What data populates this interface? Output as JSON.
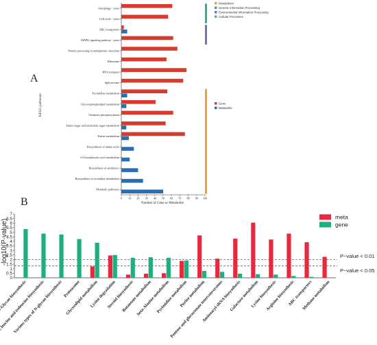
{
  "panel_labels": {
    "a": "A",
    "b": "B"
  },
  "chart_data": [
    {
      "type": "bar",
      "orientation": "horizontal",
      "ylabel": "KEGG pathways",
      "xlabel": "Number of Gene or Metabolite",
      "xlim": [
        0,
        100
      ],
      "xticks": [
        "0",
        "10",
        "20",
        "30",
        "40",
        "50",
        "60",
        "70",
        "80",
        "90",
        "100"
      ],
      "categories": [
        "Autophagy - yeast",
        "Cell cycle - yeast",
        "ABC transporters",
        "MAPK signaling pathway - yeast",
        "Protein processing in endoplasmic reticulum",
        "Ribosome",
        "RNA transport",
        "Spliceosome",
        "Pyrimidine metabolism",
        "Glycerophospholipid metabolism",
        "Oxidative phosphorylation",
        "Amino sugar and nucleotide sugar metabolism",
        "Purine metabolism",
        "Biosynthesis of amino acids",
        "2-Oxocarboxylic acid metabolism",
        "Biosynthesis of antibiotics",
        "Biosynthesis of secondary metabolites",
        "Metabolic pathways"
      ],
      "series": [
        {
          "name": "Gene",
          "color": "#d63b2f",
          "values": [
            61,
            56,
            3,
            62,
            67,
            54,
            78,
            74,
            55,
            41,
            62,
            53,
            76,
            0,
            0,
            0,
            0,
            0
          ]
        },
        {
          "name": "Metabolite",
          "color": "#2b6cb3",
          "values": [
            0,
            0,
            7,
            0,
            0,
            0,
            0,
            0,
            7,
            6,
            0,
            6,
            9,
            15,
            10,
            20,
            26,
            50
          ]
        }
      ],
      "class_legend": [
        {
          "label": "Metabolism",
          "color": "#f0a030"
        },
        {
          "label": "Genetic Information Processing",
          "color": "#3aa7a7"
        },
        {
          "label": "Environmental Information Processing",
          "color": "#7a6fb8"
        },
        {
          "label": "Cellular Processes",
          "color": "#6aa0d8"
        }
      ],
      "class_brackets": [
        {
          "color": "#3aa7a7",
          "from": 0,
          "to": 1
        },
        {
          "color": "#7a6fb8",
          "from": 2,
          "to": 3
        },
        {
          "color": "#f0a030",
          "from": 8,
          "to": 17
        }
      ]
    },
    {
      "type": "bar",
      "ylabel": "-log10(P-value)",
      "ylim": [
        0,
        7
      ],
      "yticks": [
        "0",
        "0.5",
        "1",
        "1.5",
        "2",
        "2.5",
        "3",
        "3.5",
        "4",
        "4.5",
        "5",
        "5.5",
        "6",
        "6.5",
        "7"
      ],
      "categories": [
        "N-Glycan biosynthesis",
        "Valine, leucine and isoleucine biosynthesis",
        "Various types of N-glycan biosynthesis",
        "Proteasome",
        "Glycerolipid metabolism",
        "Lysine degradation",
        "Steroid biosynthesis",
        "Butanoate metabolism",
        "beta-Alanine metabolism",
        "Pyrimidine metabolism",
        "Purine metabolism",
        "Pentose and glucuronate interconversions",
        "Aminoacyl-tRNA biosynthesis",
        "Galactose metabolism",
        "Lysine biosynthesis",
        "Arginine biosynthesis",
        "ABC transporters",
        "Methane metabolism"
      ],
      "series": [
        {
          "name": "meta",
          "color": "#e8283e",
          "values": [
            0,
            0,
            0,
            0,
            1.25,
            2.45,
            0.35,
            0.45,
            0.5,
            1.85,
            4.65,
            2.1,
            4.3,
            6.05,
            4.2,
            4.85,
            3.9,
            2.3
          ]
        },
        {
          "name": "gene",
          "color": "#1fae7c",
          "values": [
            5.35,
            4.85,
            4.75,
            4.25,
            3.85,
            2.5,
            2.2,
            2.25,
            2.2,
            1.9,
            0.75,
            0.65,
            0.45,
            0.4,
            0.35,
            0.2,
            0.1,
            0
          ]
        }
      ],
      "thresholds": [
        {
          "label": "P−value < 0.01",
          "value": 2.0
        },
        {
          "label": "P−value < 0.05",
          "value": 1.3
        }
      ]
    }
  ]
}
